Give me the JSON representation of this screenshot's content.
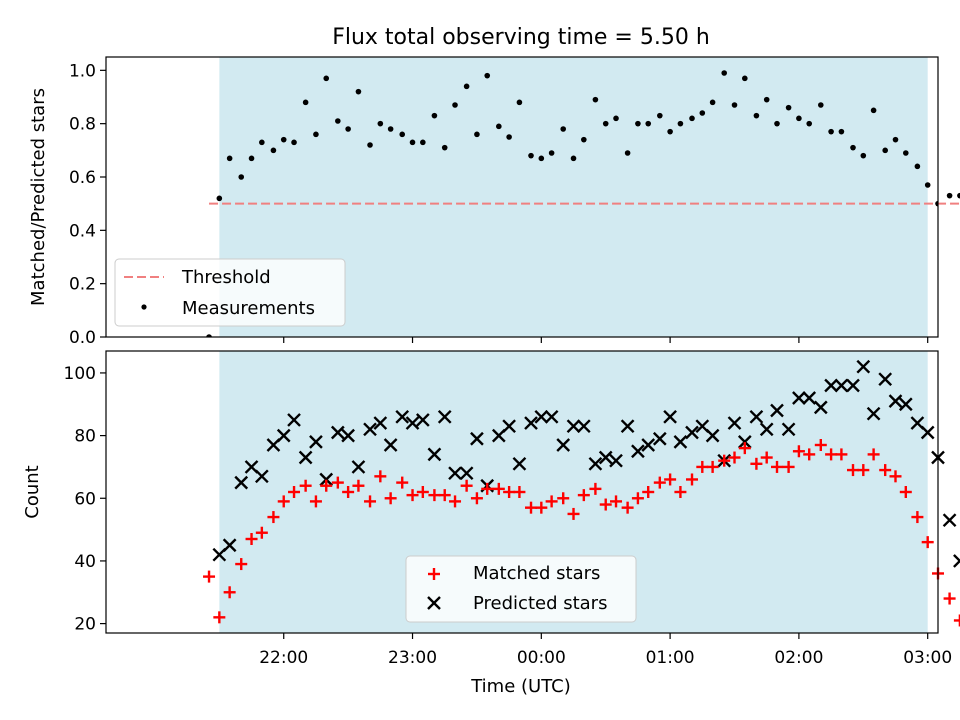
{
  "chart_data": [
    {
      "type": "scatter",
      "title": "Flux total observing time = 5.50 h",
      "ylabel": "Matched/Predicted stars",
      "xlabel": "",
      "ylim": [
        0,
        1.05
      ],
      "yticks": [
        0.0,
        0.2,
        0.4,
        0.6,
        0.8,
        1.0
      ],
      "ytick_labels": [
        "0.0",
        "0.2",
        "0.4",
        "0.6",
        "0.8",
        "1.0"
      ],
      "x_unit": "hours since 21:00 UTC",
      "xlim": [
        20.62,
        27.08
      ],
      "observing_window": [
        21.5,
        27.0
      ],
      "shade_color": "#add8e6",
      "threshold": {
        "name": "Threshold",
        "value": 0.5,
        "x_range": [
          21.42,
          28.3
        ],
        "color": "#f08080"
      },
      "legend": {
        "position": "lower-left",
        "entries": [
          "Threshold",
          "Measurements"
        ]
      },
      "series": [
        {
          "name": "Measurements",
          "color": "#000000",
          "x": [
            21.42,
            21.5,
            21.58,
            21.67,
            21.75,
            21.83,
            21.92,
            22.0,
            22.08,
            22.17,
            22.25,
            22.33,
            22.42,
            22.5,
            22.58,
            22.67,
            22.75,
            22.83,
            22.92,
            23.0,
            23.08,
            23.17,
            23.25,
            23.33,
            23.42,
            23.5,
            23.58,
            23.67,
            23.75,
            23.83,
            23.92,
            24.0,
            24.08,
            24.17,
            24.25,
            24.33,
            24.42,
            24.5,
            24.58,
            24.67,
            24.75,
            24.83,
            24.92,
            25.0,
            25.08,
            25.17,
            25.25,
            25.33,
            25.42,
            25.5,
            25.58,
            25.67,
            25.75,
            25.83,
            25.92,
            26.0,
            26.08,
            26.17,
            26.25,
            26.33,
            26.42,
            26.5,
            26.58,
            26.67,
            26.75,
            26.83,
            26.92,
            27.0,
            27.08,
            27.17,
            27.25
          ],
          "y": [
            0.0,
            0.52,
            0.67,
            0.6,
            0.67,
            0.73,
            0.7,
            0.74,
            0.73,
            0.88,
            0.76,
            0.97,
            0.81,
            0.78,
            0.92,
            0.72,
            0.8,
            0.78,
            0.76,
            0.73,
            0.73,
            0.83,
            0.71,
            0.87,
            0.94,
            0.76,
            0.98,
            0.79,
            0.75,
            0.88,
            0.68,
            0.67,
            0.69,
            0.78,
            0.67,
            0.74,
            0.89,
            0.8,
            0.82,
            0.69,
            0.8,
            0.8,
            0.83,
            0.77,
            0.8,
            0.82,
            0.84,
            0.88,
            0.99,
            0.87,
            0.97,
            0.83,
            0.89,
            0.8,
            0.86,
            0.82,
            0.8,
            0.87,
            0.77,
            0.77,
            0.71,
            0.68,
            0.85,
            0.7,
            0.74,
            0.69,
            0.64,
            0.57,
            0.5,
            0.53,
            0.53
          ]
        }
      ]
    },
    {
      "type": "scatter",
      "title": "",
      "ylabel": "Count",
      "xlabel": "Time (UTC)",
      "ylim": [
        17,
        107
      ],
      "yticks": [
        20,
        40,
        60,
        80,
        100
      ],
      "ytick_labels": [
        "20",
        "40",
        "60",
        "80",
        "100"
      ],
      "x_unit": "hours since 21:00 UTC",
      "xlim": [
        20.62,
        27.08
      ],
      "xticks": [
        22,
        23,
        24,
        25,
        26,
        27
      ],
      "xtick_labels": [
        "22:00",
        "23:00",
        "00:00",
        "01:00",
        "02:00",
        "03:00"
      ],
      "observing_window": [
        21.5,
        27.0
      ],
      "shade_color": "#add8e6",
      "legend": {
        "position": "lower-center",
        "entries": [
          "Matched stars",
          "Predicted stars"
        ]
      },
      "series": [
        {
          "name": "Matched stars",
          "marker": "plus",
          "color": "#ff0000",
          "x": [
            21.42,
            21.5,
            21.58,
            21.67,
            21.75,
            21.83,
            21.92,
            22.0,
            22.08,
            22.17,
            22.25,
            22.33,
            22.42,
            22.5,
            22.58,
            22.67,
            22.75,
            22.83,
            22.92,
            23.0,
            23.08,
            23.17,
            23.25,
            23.33,
            23.42,
            23.5,
            23.58,
            23.67,
            23.75,
            23.83,
            23.92,
            24.0,
            24.08,
            24.17,
            24.25,
            24.33,
            24.42,
            24.5,
            24.58,
            24.67,
            24.75,
            24.83,
            24.92,
            25.0,
            25.08,
            25.17,
            25.25,
            25.33,
            25.42,
            25.5,
            25.58,
            25.67,
            25.75,
            25.83,
            25.92,
            26.0,
            26.08,
            26.17,
            26.25,
            26.33,
            26.42,
            26.5,
            26.58,
            26.67,
            26.75,
            26.83,
            26.92,
            27.0,
            27.08,
            27.17,
            27.25
          ],
          "y": [
            35,
            22,
            30,
            39,
            47,
            49,
            54,
            59,
            62,
            64,
            59,
            64,
            65,
            62,
            64,
            59,
            67,
            60,
            65,
            61,
            62,
            61,
            61,
            59,
            64,
            60,
            63,
            63,
            62,
            62,
            57,
            57,
            59,
            60,
            55,
            61,
            63,
            58,
            59,
            57,
            60,
            62,
            65,
            66,
            62,
            66,
            70,
            70,
            72,
            73,
            76,
            71,
            73,
            70,
            70,
            75,
            74,
            77,
            74,
            74,
            69,
            69,
            74,
            69,
            67,
            62,
            54,
            46,
            36,
            28,
            21
          ]
        },
        {
          "name": "Predicted stars",
          "marker": "x",
          "color": "#000000",
          "x": [
            21.5,
            21.58,
            21.67,
            21.75,
            21.83,
            21.92,
            22.0,
            22.08,
            22.17,
            22.25,
            22.33,
            22.42,
            22.5,
            22.58,
            22.67,
            22.75,
            22.83,
            22.92,
            23.0,
            23.08,
            23.17,
            23.25,
            23.33,
            23.42,
            23.5,
            23.58,
            23.67,
            23.75,
            23.83,
            23.92,
            24.0,
            24.08,
            24.17,
            24.25,
            24.33,
            24.42,
            24.5,
            24.58,
            24.67,
            24.75,
            24.83,
            24.92,
            25.0,
            25.08,
            25.17,
            25.25,
            25.33,
            25.42,
            25.5,
            25.58,
            25.67,
            25.75,
            25.83,
            25.92,
            26.0,
            26.08,
            26.17,
            26.25,
            26.33,
            26.42,
            26.5,
            26.58,
            26.67,
            26.75,
            26.83,
            26.92,
            27.0,
            27.08,
            27.17,
            27.25
          ],
          "y": [
            42,
            45,
            65,
            70,
            67,
            77,
            80,
            85,
            73,
            78,
            66,
            81,
            80,
            70,
            82,
            84,
            77,
            86,
            84,
            85,
            74,
            86,
            68,
            68,
            79,
            64,
            80,
            83,
            71,
            84,
            86,
            86,
            77,
            83,
            83,
            71,
            73,
            72,
            83,
            75,
            77,
            79,
            86,
            78,
            81,
            83,
            80,
            72,
            84,
            78,
            86,
            82,
            88,
            82,
            92,
            92,
            89,
            96,
            96,
            96,
            102,
            87,
            98,
            91,
            90,
            84,
            81,
            73,
            53,
            40
          ]
        }
      ]
    }
  ]
}
